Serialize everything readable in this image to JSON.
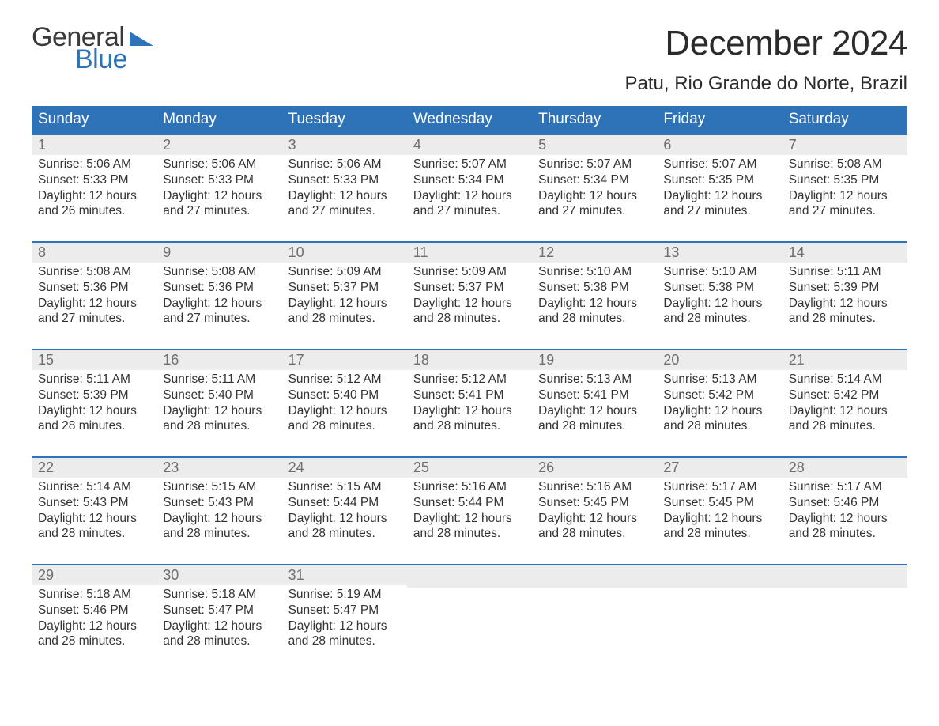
{
  "logo": {
    "line1": "General",
    "line2": "Blue",
    "line2_color": "#2e72b8",
    "triangle_color": "#2e72b8"
  },
  "title": "December 2024",
  "location": "Patu, Rio Grande do Norte, Brazil",
  "colors": {
    "header_bg": "#2e72b8",
    "header_text": "#ffffff",
    "week_top_border": "#2e72b8",
    "day_num_bg": "#ececec",
    "day_num_text": "#6e6e6e",
    "body_text": "#333333",
    "page_bg": "#ffffff"
  },
  "font": {
    "title_size_pt": 33,
    "location_size_pt": 18,
    "header_size_pt": 14,
    "body_size_pt": 12
  },
  "day_headers": [
    "Sunday",
    "Monday",
    "Tuesday",
    "Wednesday",
    "Thursday",
    "Friday",
    "Saturday"
  ],
  "weeks": [
    [
      {
        "n": "1",
        "sunrise": "Sunrise: 5:06 AM",
        "sunset": "Sunset: 5:33 PM",
        "daylight1": "Daylight: 12 hours",
        "daylight2": "and 26 minutes."
      },
      {
        "n": "2",
        "sunrise": "Sunrise: 5:06 AM",
        "sunset": "Sunset: 5:33 PM",
        "daylight1": "Daylight: 12 hours",
        "daylight2": "and 27 minutes."
      },
      {
        "n": "3",
        "sunrise": "Sunrise: 5:06 AM",
        "sunset": "Sunset: 5:33 PM",
        "daylight1": "Daylight: 12 hours",
        "daylight2": "and 27 minutes."
      },
      {
        "n": "4",
        "sunrise": "Sunrise: 5:07 AM",
        "sunset": "Sunset: 5:34 PM",
        "daylight1": "Daylight: 12 hours",
        "daylight2": "and 27 minutes."
      },
      {
        "n": "5",
        "sunrise": "Sunrise: 5:07 AM",
        "sunset": "Sunset: 5:34 PM",
        "daylight1": "Daylight: 12 hours",
        "daylight2": "and 27 minutes."
      },
      {
        "n": "6",
        "sunrise": "Sunrise: 5:07 AM",
        "sunset": "Sunset: 5:35 PM",
        "daylight1": "Daylight: 12 hours",
        "daylight2": "and 27 minutes."
      },
      {
        "n": "7",
        "sunrise": "Sunrise: 5:08 AM",
        "sunset": "Sunset: 5:35 PM",
        "daylight1": "Daylight: 12 hours",
        "daylight2": "and 27 minutes."
      }
    ],
    [
      {
        "n": "8",
        "sunrise": "Sunrise: 5:08 AM",
        "sunset": "Sunset: 5:36 PM",
        "daylight1": "Daylight: 12 hours",
        "daylight2": "and 27 minutes."
      },
      {
        "n": "9",
        "sunrise": "Sunrise: 5:08 AM",
        "sunset": "Sunset: 5:36 PM",
        "daylight1": "Daylight: 12 hours",
        "daylight2": "and 27 minutes."
      },
      {
        "n": "10",
        "sunrise": "Sunrise: 5:09 AM",
        "sunset": "Sunset: 5:37 PM",
        "daylight1": "Daylight: 12 hours",
        "daylight2": "and 28 minutes."
      },
      {
        "n": "11",
        "sunrise": "Sunrise: 5:09 AM",
        "sunset": "Sunset: 5:37 PM",
        "daylight1": "Daylight: 12 hours",
        "daylight2": "and 28 minutes."
      },
      {
        "n": "12",
        "sunrise": "Sunrise: 5:10 AM",
        "sunset": "Sunset: 5:38 PM",
        "daylight1": "Daylight: 12 hours",
        "daylight2": "and 28 minutes."
      },
      {
        "n": "13",
        "sunrise": "Sunrise: 5:10 AM",
        "sunset": "Sunset: 5:38 PM",
        "daylight1": "Daylight: 12 hours",
        "daylight2": "and 28 minutes."
      },
      {
        "n": "14",
        "sunrise": "Sunrise: 5:11 AM",
        "sunset": "Sunset: 5:39 PM",
        "daylight1": "Daylight: 12 hours",
        "daylight2": "and 28 minutes."
      }
    ],
    [
      {
        "n": "15",
        "sunrise": "Sunrise: 5:11 AM",
        "sunset": "Sunset: 5:39 PM",
        "daylight1": "Daylight: 12 hours",
        "daylight2": "and 28 minutes."
      },
      {
        "n": "16",
        "sunrise": "Sunrise: 5:11 AM",
        "sunset": "Sunset: 5:40 PM",
        "daylight1": "Daylight: 12 hours",
        "daylight2": "and 28 minutes."
      },
      {
        "n": "17",
        "sunrise": "Sunrise: 5:12 AM",
        "sunset": "Sunset: 5:40 PM",
        "daylight1": "Daylight: 12 hours",
        "daylight2": "and 28 minutes."
      },
      {
        "n": "18",
        "sunrise": "Sunrise: 5:12 AM",
        "sunset": "Sunset: 5:41 PM",
        "daylight1": "Daylight: 12 hours",
        "daylight2": "and 28 minutes."
      },
      {
        "n": "19",
        "sunrise": "Sunrise: 5:13 AM",
        "sunset": "Sunset: 5:41 PM",
        "daylight1": "Daylight: 12 hours",
        "daylight2": "and 28 minutes."
      },
      {
        "n": "20",
        "sunrise": "Sunrise: 5:13 AM",
        "sunset": "Sunset: 5:42 PM",
        "daylight1": "Daylight: 12 hours",
        "daylight2": "and 28 minutes."
      },
      {
        "n": "21",
        "sunrise": "Sunrise: 5:14 AM",
        "sunset": "Sunset: 5:42 PM",
        "daylight1": "Daylight: 12 hours",
        "daylight2": "and 28 minutes."
      }
    ],
    [
      {
        "n": "22",
        "sunrise": "Sunrise: 5:14 AM",
        "sunset": "Sunset: 5:43 PM",
        "daylight1": "Daylight: 12 hours",
        "daylight2": "and 28 minutes."
      },
      {
        "n": "23",
        "sunrise": "Sunrise: 5:15 AM",
        "sunset": "Sunset: 5:43 PM",
        "daylight1": "Daylight: 12 hours",
        "daylight2": "and 28 minutes."
      },
      {
        "n": "24",
        "sunrise": "Sunrise: 5:15 AM",
        "sunset": "Sunset: 5:44 PM",
        "daylight1": "Daylight: 12 hours",
        "daylight2": "and 28 minutes."
      },
      {
        "n": "25",
        "sunrise": "Sunrise: 5:16 AM",
        "sunset": "Sunset: 5:44 PM",
        "daylight1": "Daylight: 12 hours",
        "daylight2": "and 28 minutes."
      },
      {
        "n": "26",
        "sunrise": "Sunrise: 5:16 AM",
        "sunset": "Sunset: 5:45 PM",
        "daylight1": "Daylight: 12 hours",
        "daylight2": "and 28 minutes."
      },
      {
        "n": "27",
        "sunrise": "Sunrise: 5:17 AM",
        "sunset": "Sunset: 5:45 PM",
        "daylight1": "Daylight: 12 hours",
        "daylight2": "and 28 minutes."
      },
      {
        "n": "28",
        "sunrise": "Sunrise: 5:17 AM",
        "sunset": "Sunset: 5:46 PM",
        "daylight1": "Daylight: 12 hours",
        "daylight2": "and 28 minutes."
      }
    ],
    [
      {
        "n": "29",
        "sunrise": "Sunrise: 5:18 AM",
        "sunset": "Sunset: 5:46 PM",
        "daylight1": "Daylight: 12 hours",
        "daylight2": "and 28 minutes."
      },
      {
        "n": "30",
        "sunrise": "Sunrise: 5:18 AM",
        "sunset": "Sunset: 5:47 PM",
        "daylight1": "Daylight: 12 hours",
        "daylight2": "and 28 minutes."
      },
      {
        "n": "31",
        "sunrise": "Sunrise: 5:19 AM",
        "sunset": "Sunset: 5:47 PM",
        "daylight1": "Daylight: 12 hours",
        "daylight2": "and 28 minutes."
      },
      {
        "empty": true
      },
      {
        "empty": true
      },
      {
        "empty": true
      },
      {
        "empty": true
      }
    ]
  ]
}
